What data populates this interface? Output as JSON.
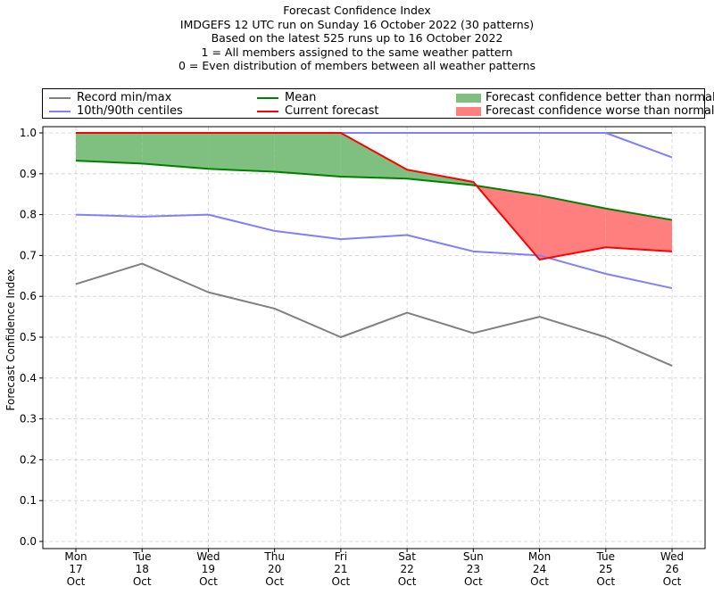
{
  "title_lines": [
    "Forecast Confidence Index",
    "IMDGEFS 12 UTC run on Sunday 16 October 2022 (30 patterns)",
    "Based on the latest 525 runs up to 16 October 2022",
    "1 = All members assigned to the same weather pattern",
    "0 = Even distribution of members between all weather patterns"
  ],
  "legend": [
    {
      "label": "Record min/max",
      "kind": "line",
      "color": "#808080"
    },
    {
      "label": "10th/90th centiles",
      "kind": "line",
      "color": "#7f7fff"
    },
    {
      "label": "Mean",
      "kind": "line",
      "color": "#008000"
    },
    {
      "label": "Current forecast",
      "kind": "line",
      "color": "#ff0000"
    },
    {
      "label": "Forecast confidence better than normal",
      "kind": "patch",
      "color": "#7fbf7f"
    },
    {
      "label": "Forecast confidence worse than normal",
      "kind": "patch",
      "color": "#ff7f7f"
    }
  ],
  "chart_data": {
    "type": "line",
    "ylabel": "Forecast Confidence Index",
    "xlabel": "",
    "ylim": [
      0,
      1
    ],
    "yticks": [
      "0.0",
      "0.1",
      "0.2",
      "0.3",
      "0.4",
      "0.5",
      "0.6",
      "0.7",
      "0.8",
      "0.9",
      "1.0"
    ],
    "grid": true,
    "legend_position": "top",
    "categories": [
      [
        "Mon",
        "17",
        "Oct"
      ],
      [
        "Tue",
        "18",
        "Oct"
      ],
      [
        "Wed",
        "19",
        "Oct"
      ],
      [
        "Thu",
        "20",
        "Oct"
      ],
      [
        "Fri",
        "21",
        "Oct"
      ],
      [
        "Sat",
        "22",
        "Oct"
      ],
      [
        "Sun",
        "23",
        "Oct"
      ],
      [
        "Mon",
        "24",
        "Oct"
      ],
      [
        "Tue",
        "25",
        "Oct"
      ],
      [
        "Wed",
        "26",
        "Oct"
      ]
    ],
    "series": [
      {
        "name": "Record min/max",
        "key": "record_min",
        "color": "#808080",
        "values": [
          0.63,
          0.68,
          0.61,
          0.57,
          0.5,
          0.56,
          0.51,
          0.55,
          0.5,
          0.43
        ]
      },
      {
        "name": "Record min/max",
        "key": "record_max",
        "color": "#808080",
        "values": [
          1.0,
          1.0,
          1.0,
          1.0,
          1.0,
          1.0,
          1.0,
          1.0,
          1.0,
          1.0
        ]
      },
      {
        "name": "10th/90th centiles",
        "key": "p10",
        "color": "#7f7fff",
        "values": [
          0.8,
          0.795,
          0.8,
          0.76,
          0.74,
          0.75,
          0.71,
          0.7,
          0.655,
          0.62
        ]
      },
      {
        "name": "10th/90th centiles",
        "key": "p90",
        "color": "#7f7fff",
        "values": [
          1.0,
          1.0,
          1.0,
          1.0,
          1.0,
          1.0,
          1.0,
          1.0,
          1.0,
          0.94
        ]
      },
      {
        "name": "Mean",
        "key": "mean",
        "color": "#008000",
        "values": [
          0.932,
          0.925,
          0.912,
          0.905,
          0.893,
          0.888,
          0.872,
          0.847,
          0.815,
          0.787
        ]
      },
      {
        "name": "Current forecast",
        "key": "current",
        "color": "#ff0000",
        "values": [
          1.0,
          1.0,
          1.0,
          1.0,
          1.0,
          0.91,
          0.88,
          0.69,
          0.72,
          0.71
        ]
      }
    ],
    "fill_better_color": "#7fbf7f",
    "fill_worse_color": "#ff7f7f"
  }
}
